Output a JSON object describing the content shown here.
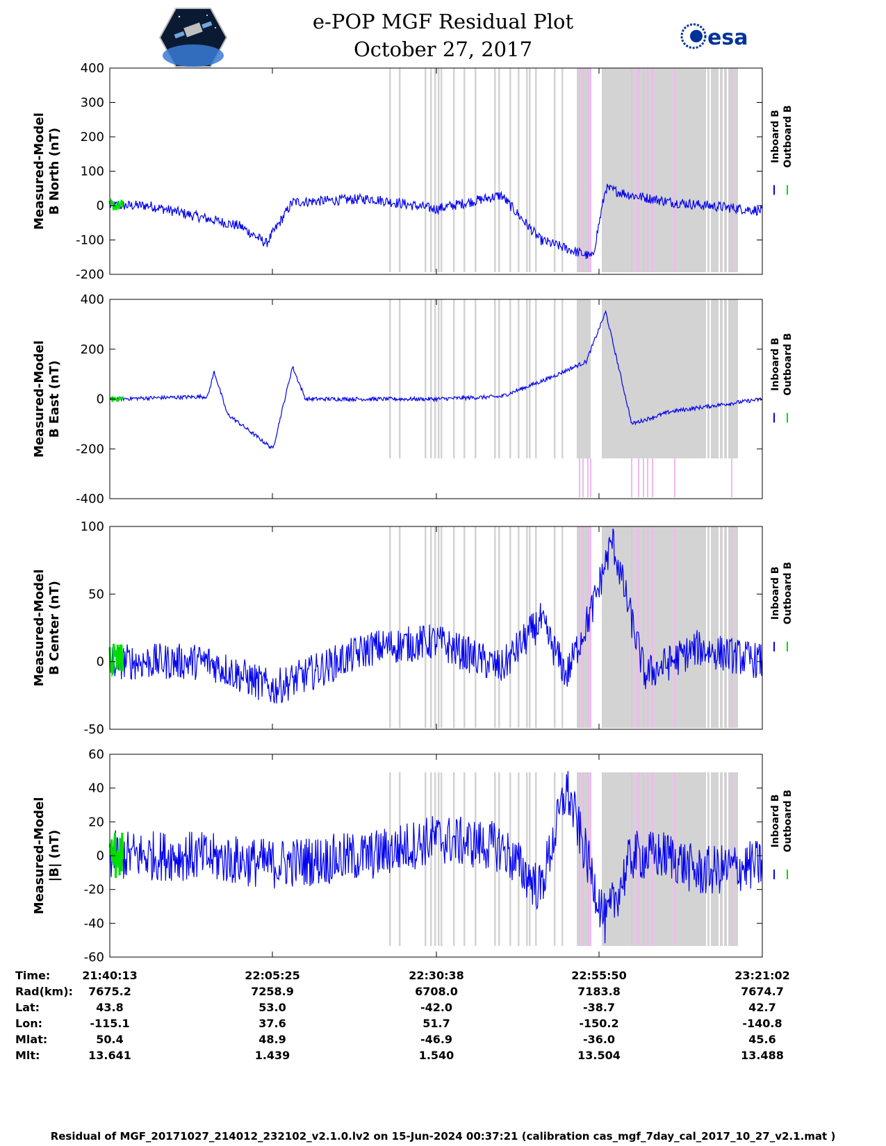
{
  "title": "e-POP MGF Residual Plot",
  "subtitle": "October 27, 2017",
  "logos": {
    "left": "cassiope-satellite-logo",
    "right": "esa"
  },
  "colors": {
    "inboard": "#0000ee",
    "outboard": "#00dd00",
    "gap_gray": "#d3d3d3",
    "gap_pink": "#f0b8f0"
  },
  "legend": {
    "inboard": "Inboard B",
    "outboard": "Outboard B"
  },
  "chart_data": [
    {
      "type": "line",
      "ylabel_line1": "Measured-Model",
      "ylabel_line2": "B North (nT)",
      "ylim": [
        -200,
        400
      ],
      "yticks": [
        "400",
        "300",
        "200",
        "100",
        "0",
        "-100",
        "-200"
      ],
      "series": [
        {
          "name": "Inboard B",
          "approx_trend": [
            [
              0,
              0
            ],
            [
              0.06,
              0
            ],
            [
              0.2,
              -60
            ],
            [
              0.24,
              -110
            ],
            [
              0.28,
              10
            ],
            [
              0.4,
              20
            ],
            [
              0.5,
              -10
            ],
            [
              0.6,
              30
            ],
            [
              0.66,
              -100
            ],
            [
              0.74,
              -150
            ],
            [
              0.76,
              50
            ],
            [
              0.8,
              30
            ],
            [
              0.86,
              10
            ],
            [
              1.0,
              -15
            ]
          ]
        },
        {
          "name": "Outboard B",
          "approx_trend": [
            [
              0,
              0
            ],
            [
              0.02,
              0
            ]
          ]
        }
      ]
    },
    {
      "type": "line",
      "ylabel_line1": "Measured-Model",
      "ylabel_line2": "B East (nT)",
      "ylim": [
        -400,
        400
      ],
      "yticks": [
        "400",
        "200",
        "0",
        "-200",
        "-400"
      ],
      "series": [
        {
          "name": "Inboard B",
          "approx_trend": [
            [
              0,
              0
            ],
            [
              0.15,
              10
            ],
            [
              0.16,
              110
            ],
            [
              0.18,
              -60
            ],
            [
              0.25,
              -200
            ],
            [
              0.28,
              130
            ],
            [
              0.3,
              0
            ],
            [
              0.5,
              0
            ],
            [
              0.6,
              10
            ],
            [
              0.67,
              80
            ],
            [
              0.73,
              150
            ],
            [
              0.76,
              350
            ],
            [
              0.8,
              -100
            ],
            [
              0.86,
              -50
            ],
            [
              1.0,
              0
            ]
          ]
        },
        {
          "name": "Outboard B",
          "approx_trend": [
            [
              0,
              0
            ],
            [
              0.02,
              0
            ]
          ]
        }
      ]
    },
    {
      "type": "line",
      "ylabel_line1": "Measured-Model",
      "ylabel_line2": "B Center (nT)",
      "ylim": [
        -50,
        100
      ],
      "yticks": [
        "100",
        "50",
        "0",
        "-50"
      ],
      "series": [
        {
          "name": "Inboard B",
          "approx_trend": [
            [
              0,
              0
            ],
            [
              0.15,
              0
            ],
            [
              0.25,
              -20
            ],
            [
              0.4,
              10
            ],
            [
              0.5,
              15
            ],
            [
              0.6,
              -5
            ],
            [
              0.66,
              30
            ],
            [
              0.7,
              -10
            ],
            [
              0.74,
              40
            ],
            [
              0.77,
              90
            ],
            [
              0.82,
              -10
            ],
            [
              0.9,
              10
            ],
            [
              1.0,
              0
            ]
          ]
        },
        {
          "name": "Outboard B",
          "approx_trend": [
            [
              0,
              0
            ],
            [
              0.02,
              0
            ]
          ]
        }
      ]
    },
    {
      "type": "line",
      "ylabel_line1": "Measured-Model",
      "ylabel_line2": "|B| (nT)",
      "ylim": [
        -60,
        60
      ],
      "yticks": [
        "60",
        "40",
        "20",
        "0",
        "-20",
        "-40",
        "-60"
      ],
      "series": [
        {
          "name": "Inboard B",
          "approx_trend": [
            [
              0,
              0
            ],
            [
              0.12,
              0
            ],
            [
              0.25,
              -5
            ],
            [
              0.4,
              0
            ],
            [
              0.5,
              10
            ],
            [
              0.6,
              5
            ],
            [
              0.66,
              -20
            ],
            [
              0.7,
              40
            ],
            [
              0.76,
              -40
            ],
            [
              0.8,
              0
            ],
            [
              0.86,
              0
            ],
            [
              0.9,
              -10
            ],
            [
              1.0,
              -5
            ]
          ]
        },
        {
          "name": "Outboard B",
          "approx_trend": [
            [
              0,
              0
            ],
            [
              0.02,
              0
            ]
          ]
        }
      ]
    }
  ],
  "xticks": [
    "21:40:13",
    "22:05:25",
    "22:30:38",
    "22:55:50",
    "23:21:02"
  ],
  "info_labels": [
    "Time:",
    "Rad(km):",
    "Lat:",
    "Lon:",
    "Mlat:",
    "Mlt:"
  ],
  "info_rows": [
    [
      "21:40:13",
      "22:05:25",
      "22:30:38",
      "22:55:50",
      "23:21:02"
    ],
    [
      "7675.2",
      "7258.9",
      "6708.0",
      "7183.8",
      "7674.7"
    ],
    [
      "43.8",
      "53.0",
      "-42.0",
      "-38.7",
      "42.7"
    ],
    [
      "-115.1",
      "37.6",
      "51.7",
      "-150.2",
      "-140.8"
    ],
    [
      "50.4",
      "48.9",
      "-46.9",
      "-36.0",
      "45.6"
    ],
    [
      "13.641",
      "1.439",
      "1.540",
      "13.504",
      "13.488"
    ]
  ],
  "footer": "Residual of MGF_20171027_214012_232102_v2.1.0.lv2 on 15-Jun-2024 00:37:21 (calibration cas_mgf_7day_cal_2017_10_27_v2.1.mat )"
}
